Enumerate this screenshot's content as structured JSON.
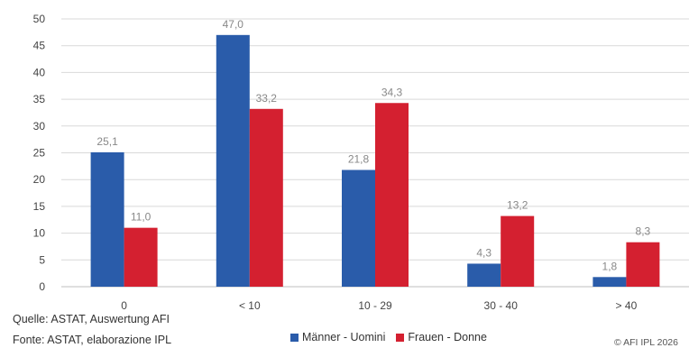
{
  "chart_data": {
    "type": "bar",
    "categories": [
      "0",
      "< 10",
      "10 - 29",
      "30 - 40",
      "> 40"
    ],
    "series": [
      {
        "name": "Männer - Uomini",
        "values": [
          25.1,
          47.0,
          21.8,
          4.3,
          1.8
        ],
        "labels": [
          "25,1",
          "47,0",
          "21,8",
          "4,3",
          "1,8"
        ],
        "color": "#2a5caa"
      },
      {
        "name": "Frauen - Donne",
        "values": [
          11.0,
          33.2,
          34.3,
          13.2,
          8.3
        ],
        "labels": [
          "11,0",
          "33,2",
          "34,3",
          "13,2",
          "8,3"
        ],
        "color": "#d42030"
      }
    ],
    "ylim": [
      0,
      50
    ],
    "yticks": [
      0,
      5,
      10,
      15,
      20,
      25,
      30,
      35,
      40,
      45,
      50
    ],
    "grid": true,
    "legend_position": "bottom"
  },
  "footer": {
    "source_de": "Quelle: ASTAT, Auswertung AFI",
    "source_it": "Fonte: ASTAT, elaborazione IPL",
    "copyright": "© AFI IPL 2026"
  },
  "legend": [
    {
      "label": "Männer - Uomini",
      "color": "#2a5caa"
    },
    {
      "label": "Frauen - Donne",
      "color": "#d42030"
    }
  ]
}
